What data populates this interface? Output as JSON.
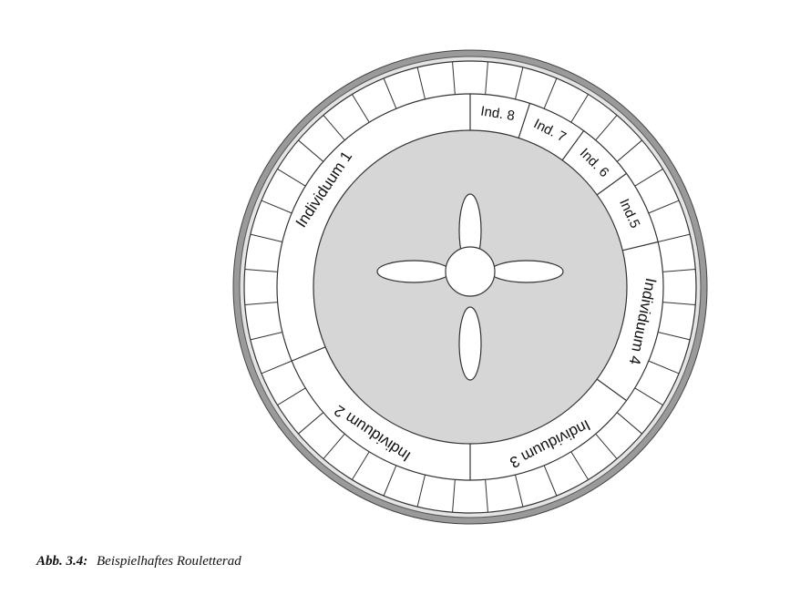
{
  "figure": {
    "caption_label": "Abb. 3.4:",
    "caption_text": "Beispielhaftes Rouletterad"
  },
  "wheel": {
    "outer_pocket_count": 40,
    "colors": {
      "rim_outer": "#9a9a9a",
      "rim_inner": "#e4e4e4",
      "pockets": "#ffffff",
      "center": "#d6d6d6",
      "line": "#333333"
    },
    "segments": [
      {
        "label": "Individuum 1",
        "share": 0.3125
      },
      {
        "label": "Individuum 2",
        "share": 0.1875
      },
      {
        "label": "Individuum 3",
        "share": 0.15
      },
      {
        "label": "Individuum 4",
        "share": 0.1375
      },
      {
        "label": "Ind.5",
        "share": 0.0625
      },
      {
        "label": "Ind. 6",
        "share": 0.05
      },
      {
        "label": "Ind. 7",
        "share": 0.05
      },
      {
        "label": "Ind. 8",
        "share": 0.05
      }
    ]
  }
}
